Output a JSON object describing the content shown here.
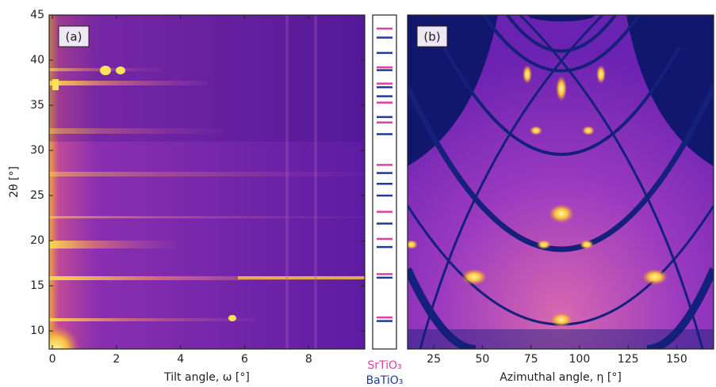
{
  "chart_data": [
    {
      "type": "heatmap",
      "label": "(a)",
      "x_label": "Tilt angle, ω [°]",
      "y_label": "2θ [°]",
      "xlim": [
        -0.1,
        9.75
      ],
      "xticks": [
        0,
        2,
        4,
        6,
        8
      ],
      "ylim": [
        8,
        45
      ],
      "yticks": [
        10,
        15,
        20,
        25,
        30,
        35,
        40,
        45
      ]
    },
    {
      "type": "reflections",
      "ylim": [
        8,
        45
      ],
      "series": [
        {
          "name": "SrTiO₃",
          "color": "#e0409e",
          "values": [
            43.5,
            39.2,
            37.4,
            35.3,
            33.1,
            28.4,
            23.2,
            20.2,
            16.3,
            11.5
          ]
        },
        {
          "name": "BaTiO₃",
          "color": "#1f3c9a",
          "values": [
            42.5,
            40.8,
            38.9,
            37.0,
            36.0,
            33.7,
            31.8,
            27.5,
            26.3,
            25.0,
            21.9,
            19.3,
            15.9,
            11.1
          ]
        }
      ]
    },
    {
      "type": "heatmap",
      "label": "(b)",
      "x_label": "Azimuthal angle, η [°]",
      "xlim": [
        11.5,
        169
      ],
      "xticks": [
        25,
        50,
        75,
        100,
        125,
        150
      ],
      "ylim": [
        8,
        45
      ]
    }
  ]
}
